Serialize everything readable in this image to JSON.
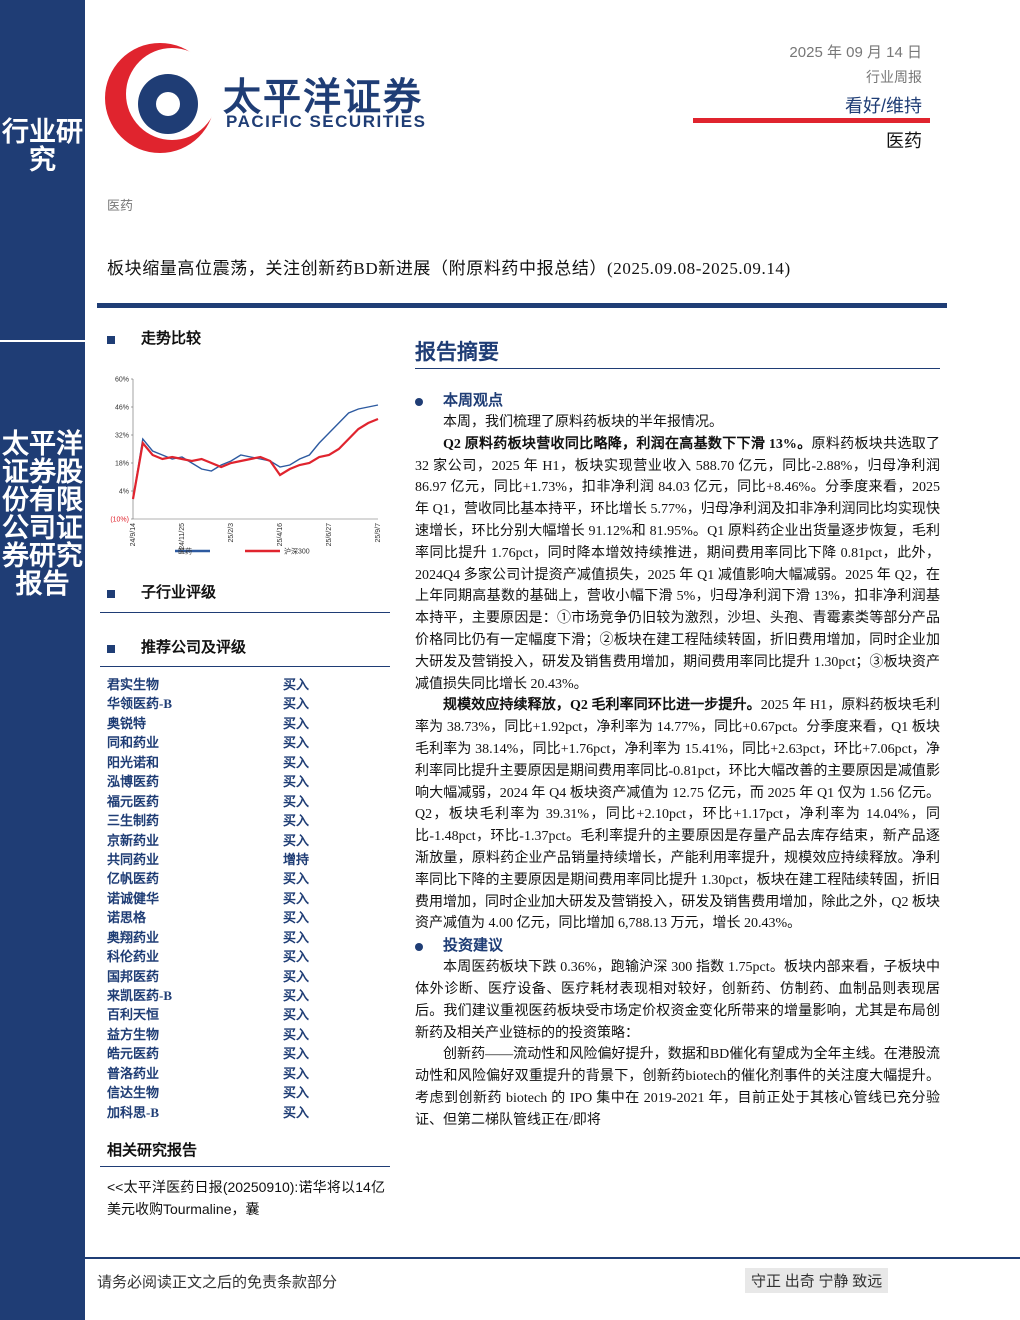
{
  "sidebar": {
    "top": "行业研究",
    "bottom": "太平洋证券股份有限公司证券研究报告"
  },
  "header": {
    "logo_cn": "太平洋证券",
    "logo_en": "PACIFIC SECURITIES",
    "date": "2025 年 09 月 14 日",
    "report_type": "行业周报",
    "rating": "看好/维持",
    "industry": "医药"
  },
  "section_label": "医药",
  "title": "板块缩量高位震荡，关注创新药BD新进展（附原料药中报总结）(2025.09.08-2025.09.14)",
  "left": {
    "trend_heading": "走势比较",
    "sub_rating_heading": "子行业评级",
    "recommend_heading": "推荐公司及评级",
    "companies": [
      [
        "君实生物",
        "买入"
      ],
      [
        "华领医药-B",
        "买入"
      ],
      [
        "奥锐特",
        "买入"
      ],
      [
        "同和药业",
        "买入"
      ],
      [
        "阳光诺和",
        "买入"
      ],
      [
        "泓博医药",
        "买入"
      ],
      [
        "福元医药",
        "买入"
      ],
      [
        "三生制药",
        "买入"
      ],
      [
        "京新药业",
        "买入"
      ],
      [
        "共同药业",
        "增持"
      ],
      [
        "亿帆医药",
        "买入"
      ],
      [
        "诺诚健华",
        "买入"
      ],
      [
        "诺思格",
        "买入"
      ],
      [
        "奥翔药业",
        "买入"
      ],
      [
        "科伦药业",
        "买入"
      ],
      [
        "国邦医药",
        "买入"
      ],
      [
        "来凯医药-B",
        "买入"
      ],
      [
        "百利天恒",
        "买入"
      ],
      [
        "益方生物",
        "买入"
      ],
      [
        "皓元医药",
        "买入"
      ],
      [
        "普洛药业",
        "买入"
      ],
      [
        "信达生物",
        "买入"
      ],
      [
        "加科思-B",
        "买入"
      ]
    ],
    "related_heading": "相关研究报告",
    "related_text": "<<太平洋医药日报(20250910):诺华将以14亿美元收购Tourmaline，囊"
  },
  "chart_data": {
    "type": "line",
    "categories": [
      "24/9/14",
      null,
      null,
      null,
      null,
      "24/11/25",
      null,
      null,
      null,
      null,
      "25/2/3",
      null,
      null,
      null,
      null,
      "25/4/16",
      null,
      null,
      null,
      null,
      "25/6/27",
      null,
      null,
      null,
      null,
      "25/9/7"
    ],
    "series": [
      {
        "name": "医药",
        "color": "#2d5aa0",
        "values": [
          0,
          30,
          24,
          22,
          20,
          21,
          18,
          15,
          14,
          17,
          19,
          22,
          21,
          20,
          19,
          16,
          17,
          20,
          22,
          28,
          33,
          38,
          43,
          45,
          46,
          47
        ]
      },
      {
        "name": "沪深300",
        "color": "#e0242e",
        "values": [
          0,
          28,
          22,
          20,
          21,
          20,
          19,
          20,
          18,
          16,
          18,
          19,
          20,
          21,
          19,
          12,
          15,
          17,
          18,
          21,
          22,
          25,
          30,
          35,
          38,
          40
        ]
      }
    ],
    "ylim": [
      -10,
      60
    ],
    "yticks": [
      {
        "value": 60,
        "label": "60%"
      },
      {
        "value": 46,
        "label": "46%"
      },
      {
        "value": 32,
        "label": "32%"
      },
      {
        "value": 18,
        "label": "18%"
      },
      {
        "value": 4,
        "label": "4%"
      },
      {
        "value": -10,
        "label": "(10%)"
      }
    ]
  },
  "summary": {
    "heading": "报告摘要",
    "view_heading": "本周观点",
    "paragraphs": [
      {
        "text": "本周，我们梳理了原料药板块的半年报情况。"
      },
      {
        "bold": "Q2 原料药板块营收同比略降，利润在高基数下下滑 13%。",
        "text": "原料药板块共选取了 32 家公司，2025 年 H1，板块实现营业收入 588.70 亿元，同比-2.88%，归母净利润 86.97 亿元，同比+1.73%，扣非净利润 84.03 亿元，同比+8.46%。分季度来看，2025 年 Q1，营收同比基本持平，环比增长 5.77%，归母净利润及扣非净利润同比均实现快速增长，环比分别大幅增长 91.12%和 81.95%。Q1 原料药企业出货量逐步恢复，毛利率同比提升 1.76pct，同时降本增效持续推进，期间费用率同比下降 0.81pct，此外，2024Q4 多家公司计提资产减值损失，2025 年 Q1 减值影响大幅减弱。2025 年 Q2，在上年同期高基数的基础上，营收小幅下滑 5%，归母净利润下滑 13%，扣非净利润基本持平，主要原因是：①市场竞争仍旧较为激烈，沙坦、头孢、青霉素类等部分产品价格同比仍有一定幅度下滑；②板块在建工程陆续转固，折旧费用增加，同时企业加大研发及营销投入，研发及销售费用增加，期间费用率同比提升 1.30pct；③板块资产减值损失同比增长 20.43%。"
      },
      {
        "bold": "规模效应持续释放，Q2 毛利率同环比进一步提升。",
        "text": "2025 年 H1，原料药板块毛利率为 38.73%，同比+1.92pct，净利率为 14.77%，同比+0.67pct。分季度来看，Q1 板块毛利率为 38.14%，同比+1.76pct，净利率为 15.41%，同比+2.63pct，环比+7.06pct，净利率同比提升主要原因是期间费用率同比-0.81pct，环比大幅改善的主要原因是减值影响大幅减弱，2024 年 Q4 板块资产减值为 12.75 亿元，而 2025 年 Q1 仅为 1.56 亿元。Q2，板块毛利率为 39.31%，同比+2.10pct，环比+1.17pct，净利率为 14.04%，同比-1.48pct，环比-1.37pct。毛利率提升的主要原因是存量产品去库存结束，新产品逐渐放量，原料药企业产品销量持续增长，产能利用率提升，规模效应持续释放。净利率同比下降的主要原因是期间费用率同比提升 1.30pct，板块在建工程陆续转固，折旧费用增加，同时企业加大研发及营销投入，研发及销售费用增加，除此之外，Q2 板块资产减值为 4.00 亿元，同比增加 6,788.13 万元，增长 20.43%。"
      }
    ],
    "invest_heading": "投资建议",
    "invest_paragraphs": [
      "本周医药板块下跌 0.36%，跑输沪深 300 指数 1.75pct。板块内部来看，子板块中体外诊断、医疗设备、医疗耗材表现相对较好，创新药、仿制药、血制品则表现居后。我们建议重视医药板块受市场定价权资金变化所带来的增量影响，尤其是布局创新药及相关产业链标的的投资策略：",
      "创新药——流动性和风险偏好提升，数据和BD催化有望成为全年主线。在港股流动性和风险偏好双重提升的背景下，创新药biotech的催化剂事件的关注度大幅提升。考虑到创新药 biotech 的 IPO 集中在 2019-2021 年，目前正处于其核心管线已充分验证、但第二梯队管线正在/即将"
    ]
  },
  "footer": {
    "disclaimer": "请务必阅读正文之后的免责条款部分",
    "motto": "守正 出奇 宁静 致远"
  }
}
